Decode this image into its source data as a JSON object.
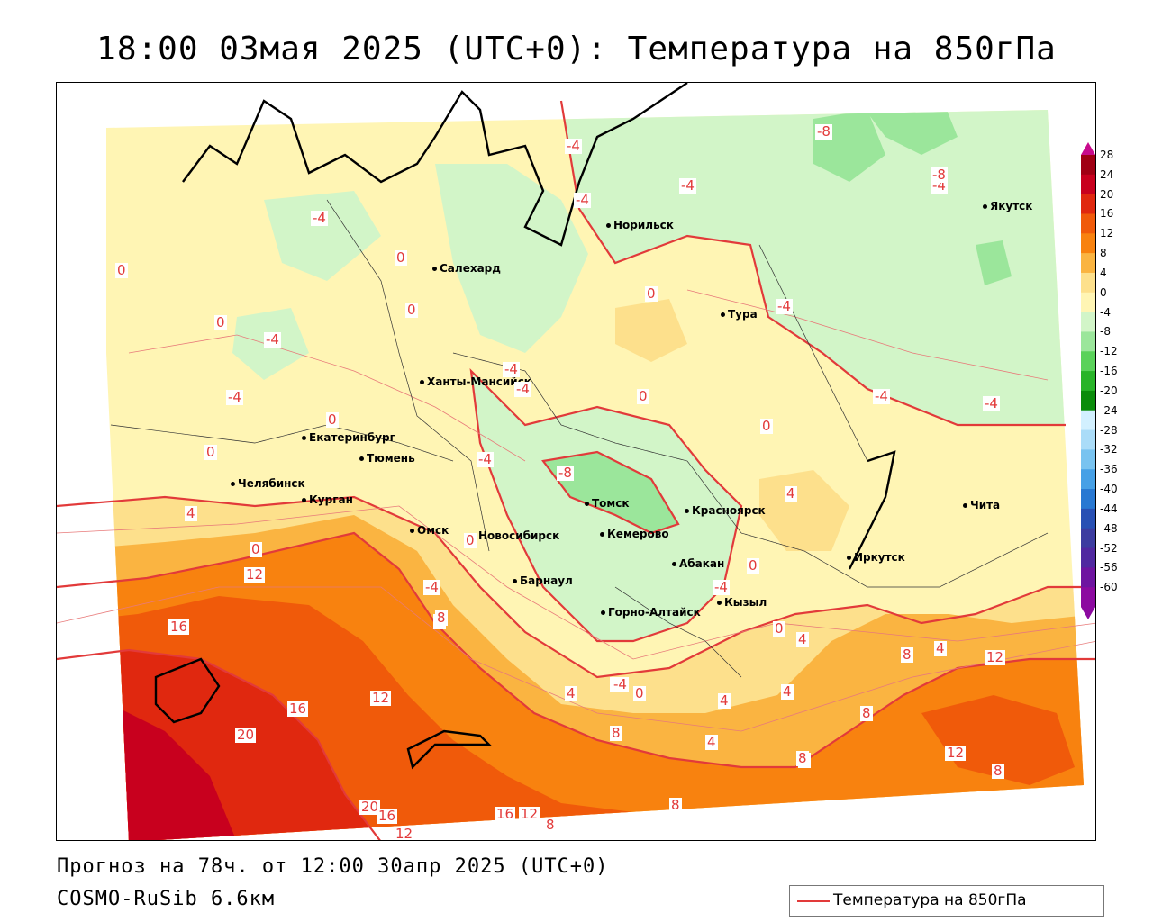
{
  "title": "18:00 03мая 2025 (UTC+0): Температура на 850гПа",
  "footer": {
    "forecast": "Прогноз на 78ч. от 12:00 30апр 2025 (UTC+0)",
    "model": "COSMO-RuSib 6.6км"
  },
  "legend": {
    "label": "Температура на 850гПа",
    "line_color": "#e23a3a"
  },
  "colorbar": {
    "ticks": [
      "28",
      "24",
      "20",
      "16",
      "12",
      "8",
      "4",
      "0",
      "-4",
      "-8",
      "-12",
      "-16",
      "-20",
      "-24",
      "-28",
      "-32",
      "-36",
      "-40",
      "-44",
      "-48",
      "-52",
      "-56",
      "-60"
    ],
    "colors": [
      "#a00014",
      "#c8001e",
      "#e0280f",
      "#f05a0a",
      "#f8820f",
      "#fab441",
      "#fde08c",
      "#fff5b4",
      "#d2f5c8",
      "#9be69b",
      "#5ad25a",
      "#28b428",
      "#0a8c0a",
      "#d2f0ff",
      "#aadcf8",
      "#78c3f0",
      "#46a0e6",
      "#2878d2",
      "#2850b4",
      "#3c3ca0",
      "#5028a0",
      "#6e14a0",
      "#8c0aa0"
    ]
  },
  "cities": [
    {
      "name": "Якутск"
    },
    {
      "name": "Норильск"
    },
    {
      "name": "Салехард"
    },
    {
      "name": "Тура"
    },
    {
      "name": "Ханты-Мансийск"
    },
    {
      "name": "Екатеринбург"
    },
    {
      "name": "Тюмень"
    },
    {
      "name": "Челябинск"
    },
    {
      "name": "Курган"
    },
    {
      "name": "Омск"
    },
    {
      "name": "Новосибирск"
    },
    {
      "name": "Томск"
    },
    {
      "name": "Кемерово"
    },
    {
      "name": "Красноярск"
    },
    {
      "name": "Барнаул"
    },
    {
      "name": "Абакан"
    },
    {
      "name": "Горно-Алтайск"
    },
    {
      "name": "Кызыл"
    },
    {
      "name": "Иркутск"
    },
    {
      "name": "Чита"
    }
  ],
  "contour_labels": [
    "-8",
    "-4",
    "-4",
    "-4",
    "-4",
    "-8",
    "-4",
    "-4",
    "0",
    "0",
    "0",
    "-4",
    "0",
    "-4",
    "-4",
    "0",
    "0",
    "-4",
    "-4",
    "-4",
    "-4",
    "0",
    "0",
    "-4",
    "0",
    "-8",
    "-4",
    "4",
    "4",
    "0",
    "0",
    "0",
    "0",
    "-4",
    "4",
    "8",
    "4",
    "12",
    "16",
    "8",
    "16",
    "12",
    "12",
    "20",
    "4",
    "-4",
    "0",
    "4",
    "8",
    "4",
    "8",
    "4",
    "8",
    "8",
    "12",
    "8",
    "20",
    "16",
    "12",
    "16",
    "12",
    "8",
    "8",
    "8"
  ]
}
